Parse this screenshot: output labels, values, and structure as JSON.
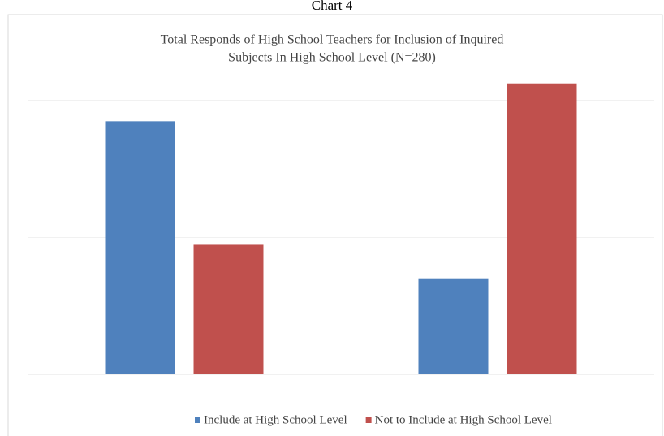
{
  "caption": "Chart 4",
  "chart_data": {
    "type": "bar",
    "title": "Total Responds of High School Teachers for Inclusion of Inquired",
    "subtitle": "Subjects In High School Level (N=280)",
    "categories": [
      null,
      null
    ],
    "series": [
      {
        "name": "Include at High School Level",
        "color": "#4f81bd",
        "values": [
          185,
          70
        ]
      },
      {
        "name": "Not to Include at High School Level",
        "color": "#c0504d",
        "values": [
          95,
          212
        ]
      }
    ],
    "ylim": [
      0,
      200
    ],
    "yticks": [
      0,
      50,
      100,
      150,
      200
    ],
    "grid": true,
    "legend": "bottom"
  }
}
